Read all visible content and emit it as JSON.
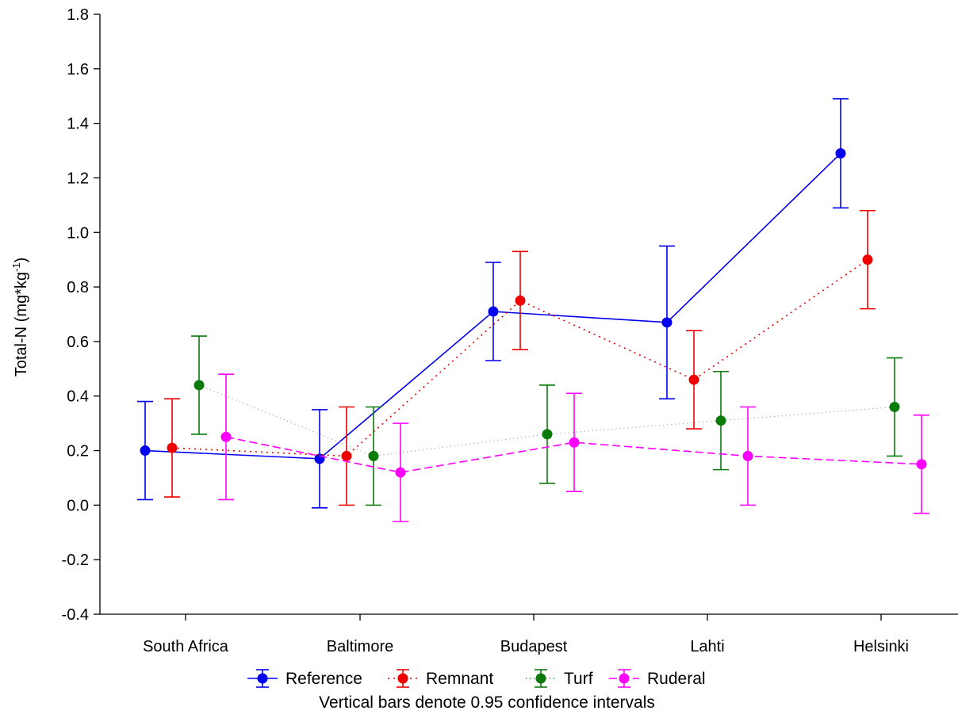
{
  "chart_data": {
    "type": "line",
    "title": "",
    "xlabel": "",
    "ylabel_main": "Total-N (mg*kg",
    "ylabel_sup": "-1",
    "ylabel_close": ")",
    "ylim": [
      -0.4,
      1.8
    ],
    "yticks": [
      -0.4,
      -0.2,
      0.0,
      0.2,
      0.4,
      0.6,
      0.8,
      1.0,
      1.2,
      1.4,
      1.6,
      1.8
    ],
    "ytick_labels": [
      "-0.4",
      "-0.2",
      "0.0",
      "0.2",
      "0.4",
      "0.6",
      "0.8",
      "1.0",
      "1.2",
      "1.4",
      "1.6",
      "1.8"
    ],
    "categories": [
      "South Africa",
      "Baltimore",
      "Budapest",
      "Lahti",
      "Helsinki"
    ],
    "legend_position": "bottom",
    "footnote": "Vertical bars denote 0.95 confidence intervals",
    "series": [
      {
        "name": "Reference",
        "color": "#0000ee",
        "line_style": "solid",
        "values": [
          0.2,
          0.17,
          0.71,
          0.67,
          1.29
        ],
        "ci_low": [
          0.02,
          -0.01,
          0.53,
          0.39,
          1.09
        ],
        "ci_high": [
          0.38,
          0.35,
          0.89,
          0.95,
          1.49
        ]
      },
      {
        "name": "Remnant",
        "color": "#ee0000",
        "line_style": "dotted",
        "values": [
          0.21,
          0.18,
          0.75,
          0.46,
          0.9
        ],
        "ci_low": [
          0.03,
          0.0,
          0.57,
          0.28,
          0.72
        ],
        "ci_high": [
          0.39,
          0.36,
          0.93,
          0.64,
          1.08
        ]
      },
      {
        "name": "Turf",
        "color": "#0a7a0a",
        "line_style": "fine-dotted",
        "values": [
          0.44,
          0.18,
          0.26,
          0.31,
          0.36
        ],
        "ci_low": [
          0.26,
          0.0,
          0.08,
          0.13,
          0.18
        ],
        "ci_high": [
          0.62,
          0.36,
          0.44,
          0.49,
          0.54
        ]
      },
      {
        "name": "Ruderal",
        "color": "#ff00ff",
        "line_style": "dashed",
        "values": [
          0.25,
          0.12,
          0.23,
          0.18,
          0.15
        ],
        "ci_low": [
          0.02,
          -0.06,
          0.05,
          0.0,
          -0.03
        ],
        "ci_high": [
          0.48,
          0.3,
          0.41,
          0.36,
          0.33
        ]
      }
    ]
  }
}
